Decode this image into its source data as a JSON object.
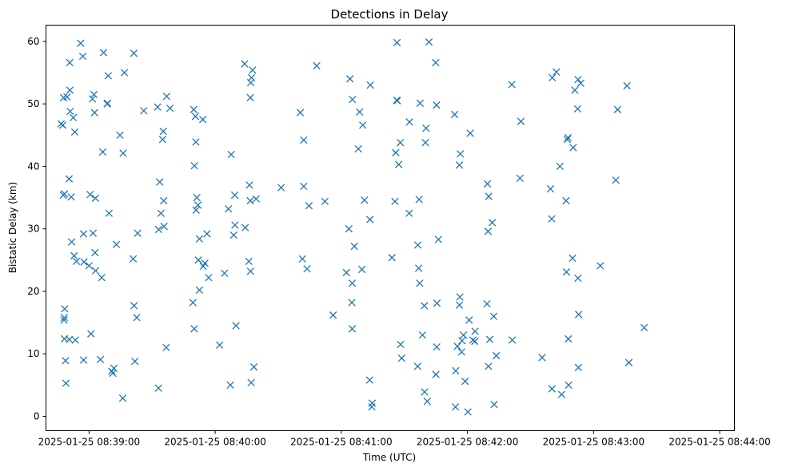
{
  "chart_data": {
    "type": "scatter",
    "title": "Detections in Delay",
    "xlabel": "Time (UTC)",
    "ylabel": "Bistatic Delay (km)",
    "marker": "x",
    "marker_color": "#1f77b4",
    "grid": false,
    "x_units": "seconds after 2025-01-25 08:38:00 UTC",
    "xlim": [
      39.5,
      367
    ],
    "ylim": [
      -2.3,
      62.6
    ],
    "x_ticks": [
      {
        "value": 60,
        "label": "2025-01-25 08:39:00"
      },
      {
        "value": 120,
        "label": "2025-01-25 08:40:00"
      },
      {
        "value": 180,
        "label": "2025-01-25 08:41:00"
      },
      {
        "value": 240,
        "label": "2025-01-25 08:42:00"
      },
      {
        "value": 300,
        "label": "2025-01-25 08:43:00"
      },
      {
        "value": 360,
        "label": "2025-01-25 08:44:00"
      }
    ],
    "y_ticks": [
      {
        "value": 0,
        "label": "0"
      },
      {
        "value": 10,
        "label": "10"
      },
      {
        "value": 20,
        "label": "20"
      },
      {
        "value": 30,
        "label": "30"
      },
      {
        "value": 40,
        "label": "40"
      },
      {
        "value": 50,
        "label": "50"
      },
      {
        "value": 60,
        "label": "60"
      }
    ],
    "series": [
      {
        "name": "Detections",
        "points": [
          [
            46.7,
            46.8
          ],
          [
            47.5,
            46.6
          ],
          [
            47.9,
            51.0
          ],
          [
            48.2,
            15.8
          ],
          [
            48.4,
            17.2
          ],
          [
            48.1,
            15.4
          ],
          [
            48.3,
            12.4
          ],
          [
            47.7,
            35.4
          ],
          [
            48.3,
            35.6
          ],
          [
            48.8,
            8.9
          ],
          [
            49.0,
            5.3
          ],
          [
            49.5,
            51.1
          ],
          [
            50.6,
            12.3
          ],
          [
            50.5,
            38.0
          ],
          [
            50.8,
            56.6
          ],
          [
            50.9,
            52.2
          ],
          [
            51.0,
            48.8
          ],
          [
            51.5,
            35.1
          ],
          [
            51.7,
            27.9
          ],
          [
            52.5,
            47.8
          ],
          [
            52.9,
            25.7
          ],
          [
            53.2,
            45.5
          ],
          [
            53.5,
            12.2
          ],
          [
            54.0,
            24.8
          ],
          [
            56.0,
            59.7
          ],
          [
            57.0,
            57.6
          ],
          [
            57.4,
            29.2
          ],
          [
            57.6,
            24.7
          ],
          [
            57.4,
            9.0
          ],
          [
            60.0,
            24.1
          ],
          [
            60.5,
            35.5
          ],
          [
            60.9,
            13.2
          ],
          [
            61.6,
            50.8
          ],
          [
            61.9,
            29.3
          ],
          [
            62.3,
            51.5
          ],
          [
            62.6,
            48.6
          ],
          [
            62.8,
            26.2
          ],
          [
            63.1,
            23.3
          ],
          [
            63.0,
            34.9
          ],
          [
            65.4,
            9.1
          ],
          [
            66.0,
            22.2
          ],
          [
            66.5,
            42.3
          ],
          [
            66.9,
            58.2
          ],
          [
            68.6,
            50.0
          ],
          [
            68.8,
            50.1
          ],
          [
            69.1,
            54.5
          ],
          [
            69.5,
            32.5
          ],
          [
            70.8,
            7.2
          ],
          [
            71.3,
            6.9
          ],
          [
            71.8,
            7.7
          ],
          [
            73.0,
            27.5
          ],
          [
            74.7,
            45.0
          ],
          [
            76.0,
            2.9
          ],
          [
            76.2,
            42.1
          ],
          [
            76.8,
            55.0
          ],
          [
            81.0,
            25.2
          ],
          [
            81.4,
            17.7
          ],
          [
            81.3,
            58.1
          ],
          [
            81.8,
            8.8
          ],
          [
            82.7,
            15.8
          ],
          [
            83.1,
            29.3
          ],
          [
            86.0,
            48.9
          ],
          [
            92.6,
            49.5
          ],
          [
            93.0,
            4.5
          ],
          [
            93.1,
            29.9
          ],
          [
            93.6,
            37.5
          ],
          [
            94.2,
            32.5
          ],
          [
            95.0,
            44.3
          ],
          [
            95.3,
            45.6
          ],
          [
            95.5,
            34.5
          ],
          [
            95.7,
            30.4
          ],
          [
            96.7,
            11.0
          ],
          [
            96.9,
            51.2
          ],
          [
            98.5,
            49.3
          ],
          [
            109.4,
            18.2
          ],
          [
            109.8,
            49.1
          ],
          [
            110.1,
            40.1
          ],
          [
            110.0,
            14.0
          ],
          [
            110.6,
            48.0
          ],
          [
            110.8,
            43.9
          ],
          [
            110.9,
            33.0
          ],
          [
            111.3,
            35.0
          ],
          [
            111.8,
            33.8
          ],
          [
            112.0,
            25.0
          ],
          [
            112.5,
            28.4
          ],
          [
            112.5,
            20.2
          ],
          [
            114.1,
            47.5
          ],
          [
            114.3,
            24.0
          ],
          [
            115.1,
            24.5
          ],
          [
            116.1,
            29.2
          ],
          [
            116.9,
            22.2
          ],
          [
            122.1,
            11.4
          ],
          [
            124.4,
            22.9
          ],
          [
            126.3,
            33.2
          ],
          [
            127.2,
            5.0
          ],
          [
            127.6,
            41.9
          ],
          [
            128.8,
            29.0
          ],
          [
            129.3,
            35.4
          ],
          [
            129.4,
            30.6
          ],
          [
            129.9,
            14.5
          ],
          [
            134.0,
            56.4
          ],
          [
            134.3,
            30.2
          ],
          [
            136.0,
            24.8
          ],
          [
            136.3,
            37.0
          ],
          [
            136.7,
            51.0
          ],
          [
            136.7,
            34.5
          ],
          [
            136.8,
            23.2
          ],
          [
            136.9,
            53.4
          ],
          [
            137.3,
            54.2
          ],
          [
            137.1,
            5.4
          ],
          [
            137.8,
            55.4
          ],
          [
            138.4,
            7.9
          ],
          [
            139.5,
            34.8
          ],
          [
            151.4,
            36.6
          ],
          [
            160.5,
            48.6
          ],
          [
            161.5,
            25.2
          ],
          [
            162.1,
            36.8
          ],
          [
            162.1,
            44.2
          ],
          [
            163.7,
            23.6
          ],
          [
            164.6,
            33.7
          ],
          [
            168.3,
            56.1
          ],
          [
            172.2,
            34.4
          ],
          [
            176.1,
            16.2
          ],
          [
            182.4,
            23.0
          ],
          [
            183.6,
            30.0
          ],
          [
            184.1,
            54.0
          ],
          [
            185.0,
            18.2
          ],
          [
            185.2,
            21.3
          ],
          [
            185.2,
            14.0
          ],
          [
            185.3,
            50.7
          ],
          [
            186.2,
            27.2
          ],
          [
            188.1,
            42.8
          ],
          [
            188.7,
            48.7
          ],
          [
            189.8,
            23.5
          ],
          [
            190.2,
            46.6
          ],
          [
            191.0,
            34.6
          ],
          [
            193.5,
            5.8
          ],
          [
            193.6,
            31.5
          ],
          [
            193.8,
            53.0
          ],
          [
            194.7,
            2.1
          ],
          [
            194.5,
            1.5
          ],
          [
            204.1,
            25.4
          ],
          [
            205.5,
            34.4
          ],
          [
            205.9,
            42.2
          ],
          [
            206.4,
            50.6
          ],
          [
            206.6,
            50.5
          ],
          [
            206.5,
            59.8
          ],
          [
            207.3,
            40.3
          ],
          [
            208.1,
            43.8
          ],
          [
            208.2,
            11.5
          ],
          [
            208.7,
            9.3
          ],
          [
            212.4,
            47.1
          ],
          [
            212.3,
            32.5
          ],
          [
            216.3,
            8.0
          ],
          [
            216.4,
            27.4
          ],
          [
            216.8,
            23.7
          ],
          [
            217.0,
            34.7
          ],
          [
            217.3,
            21.3
          ],
          [
            217.5,
            50.1
          ],
          [
            218.6,
            13.0
          ],
          [
            219.5,
            17.7
          ],
          [
            219.6,
            3.9
          ],
          [
            220.0,
            43.8
          ],
          [
            220.3,
            46.1
          ],
          [
            220.9,
            2.4
          ],
          [
            221.7,
            59.9
          ],
          [
            224.9,
            56.6
          ],
          [
            225.0,
            6.7
          ],
          [
            225.4,
            11.1
          ],
          [
            225.5,
            18.1
          ],
          [
            225.3,
            49.8
          ],
          [
            226.2,
            28.3
          ],
          [
            233.9,
            48.3
          ],
          [
            234.4,
            7.3
          ],
          [
            234.3,
            1.5
          ],
          [
            235.2,
            11.2
          ],
          [
            236.2,
            17.8
          ],
          [
            236.4,
            19.1
          ],
          [
            236.2,
            40.2
          ],
          [
            236.6,
            42.0
          ],
          [
            237.2,
            10.3
          ],
          [
            237.4,
            12.1
          ],
          [
            238.1,
            13.0
          ],
          [
            238.9,
            5.6
          ],
          [
            240.2,
            0.7
          ],
          [
            240.8,
            15.4
          ],
          [
            241.3,
            45.3
          ],
          [
            242.6,
            12.2
          ],
          [
            243.5,
            12.0
          ],
          [
            243.6,
            13.6
          ],
          [
            249.3,
            18.0
          ],
          [
            249.5,
            37.2
          ],
          [
            249.8,
            29.6
          ],
          [
            250.0,
            8.0
          ],
          [
            250.1,
            35.2
          ],
          [
            250.6,
            12.3
          ],
          [
            251.8,
            31.0
          ],
          [
            252.5,
            16.0
          ],
          [
            252.7,
            1.9
          ],
          [
            253.7,
            9.7
          ],
          [
            261.1,
            53.1
          ],
          [
            261.3,
            12.2
          ],
          [
            265.0,
            38.1
          ],
          [
            265.4,
            47.2
          ],
          [
            275.5,
            9.4
          ],
          [
            279.5,
            36.4
          ],
          [
            280.1,
            31.6
          ],
          [
            280.4,
            54.2
          ],
          [
            280.2,
            4.4
          ],
          [
            282.3,
            55.1
          ],
          [
            284.0,
            40.0
          ],
          [
            284.8,
            3.5
          ],
          [
            286.9,
            34.5
          ],
          [
            287.1,
            23.1
          ],
          [
            287.5,
            44.3
          ],
          [
            287.8,
            44.6
          ],
          [
            288.0,
            12.4
          ],
          [
            288.1,
            5.0
          ],
          [
            290.0,
            25.3
          ],
          [
            290.3,
            43.0
          ],
          [
            291.1,
            52.2
          ],
          [
            292.4,
            49.2
          ],
          [
            292.6,
            53.9
          ],
          [
            292.6,
            22.1
          ],
          [
            292.9,
            16.3
          ],
          [
            292.8,
            7.8
          ],
          [
            293.9,
            53.3
          ],
          [
            303.2,
            24.1
          ],
          [
            310.6,
            37.8
          ],
          [
            311.4,
            49.1
          ],
          [
            315.9,
            52.9
          ],
          [
            316.8,
            8.6
          ],
          [
            324.1,
            14.2
          ]
        ]
      }
    ]
  }
}
